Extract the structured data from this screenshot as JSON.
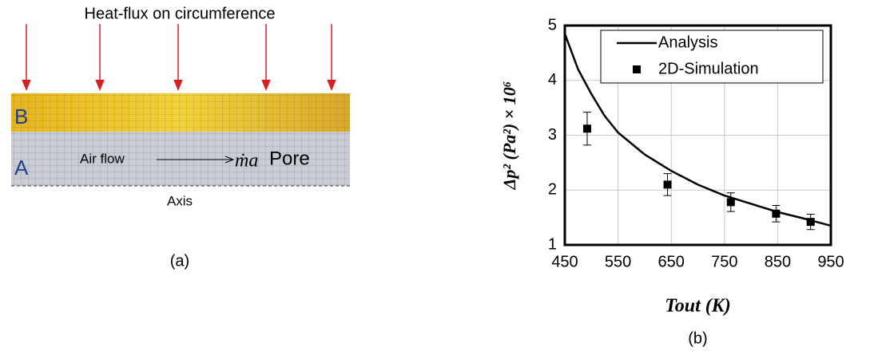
{
  "diagram": {
    "title": "Heat-flux on circumference",
    "zone_b": "B",
    "zone_a": "A",
    "flow_label": "Air flow",
    "flow_symbol": "ṁa",
    "pore": "Pore",
    "axis": "Axis",
    "caption": "(a)"
  },
  "chart_data": {
    "type": "line",
    "caption": "(b)",
    "x_label": "Tout (K)",
    "y_label": "Δp² (Pa²) × 10⁶",
    "xlim": [
      450,
      950
    ],
    "ylim": [
      1,
      5
    ],
    "xticks": [
      450,
      550,
      650,
      750,
      850,
      950
    ],
    "yticks": [
      1,
      2,
      3,
      4,
      5
    ],
    "grid": true,
    "legend": "top-right",
    "series": [
      {
        "name": "Analysis",
        "type": "line",
        "color": "#000000",
        "x": [
          450,
          475,
          500,
          525,
          550,
          600,
          650,
          700,
          750,
          800,
          850,
          900,
          950
        ],
        "values": [
          4.85,
          4.2,
          3.75,
          3.35,
          3.05,
          2.65,
          2.35,
          2.1,
          1.9,
          1.75,
          1.6,
          1.48,
          1.35
        ]
      },
      {
        "name": "2D-Simulation",
        "type": "scatter",
        "color": "#000000",
        "x": [
          492,
          643,
          762,
          847,
          912
        ],
        "values": [
          3.12,
          2.1,
          1.78,
          1.57,
          1.42
        ],
        "errors": [
          0.3,
          0.2,
          0.17,
          0.15,
          0.14
        ]
      }
    ]
  }
}
